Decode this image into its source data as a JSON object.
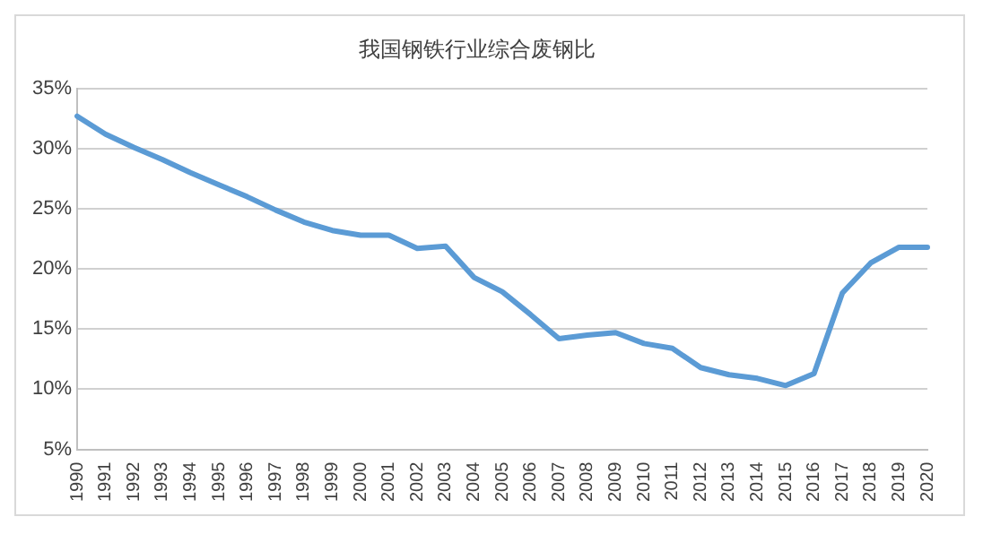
{
  "chart_data": {
    "type": "line",
    "title": "我国钢铁行业综合废钢比",
    "categories": [
      "1990",
      "1991",
      "1992",
      "1993",
      "1994",
      "1995",
      "1996",
      "1997",
      "1998",
      "1999",
      "2000",
      "2001",
      "2002",
      "2003",
      "2004",
      "2005",
      "2006",
      "2007",
      "2008",
      "2009",
      "2010",
      "2011",
      "2012",
      "2013",
      "2014",
      "2015",
      "2016",
      "2017",
      "2018",
      "2019",
      "2020"
    ],
    "series": [
      {
        "color": "#5b9bd5",
        "values": [
          32.7,
          31.2,
          30.1,
          29.1,
          28.0,
          27.0,
          26.0,
          24.9,
          23.9,
          23.2,
          22.8,
          22.8,
          21.7,
          21.9,
          19.3,
          18.1,
          16.2,
          14.2,
          14.5,
          14.7,
          13.8,
          13.4,
          11.8,
          11.2,
          10.9,
          10.3,
          11.3,
          18.0,
          20.5,
          21.8,
          21.8
        ]
      }
    ],
    "ylim": [
      5,
      35
    ],
    "yticks": [
      {
        "value": 5,
        "label": "5%"
      },
      {
        "value": 10,
        "label": "10%"
      },
      {
        "value": 15,
        "label": "15%"
      },
      {
        "value": 20,
        "label": "20%"
      },
      {
        "value": 25,
        "label": "25%"
      },
      {
        "value": 30,
        "label": "30%"
      },
      {
        "value": 35,
        "label": "35%"
      }
    ],
    "grid": "y",
    "legend": false,
    "marker": "none",
    "line_style": "solid"
  }
}
